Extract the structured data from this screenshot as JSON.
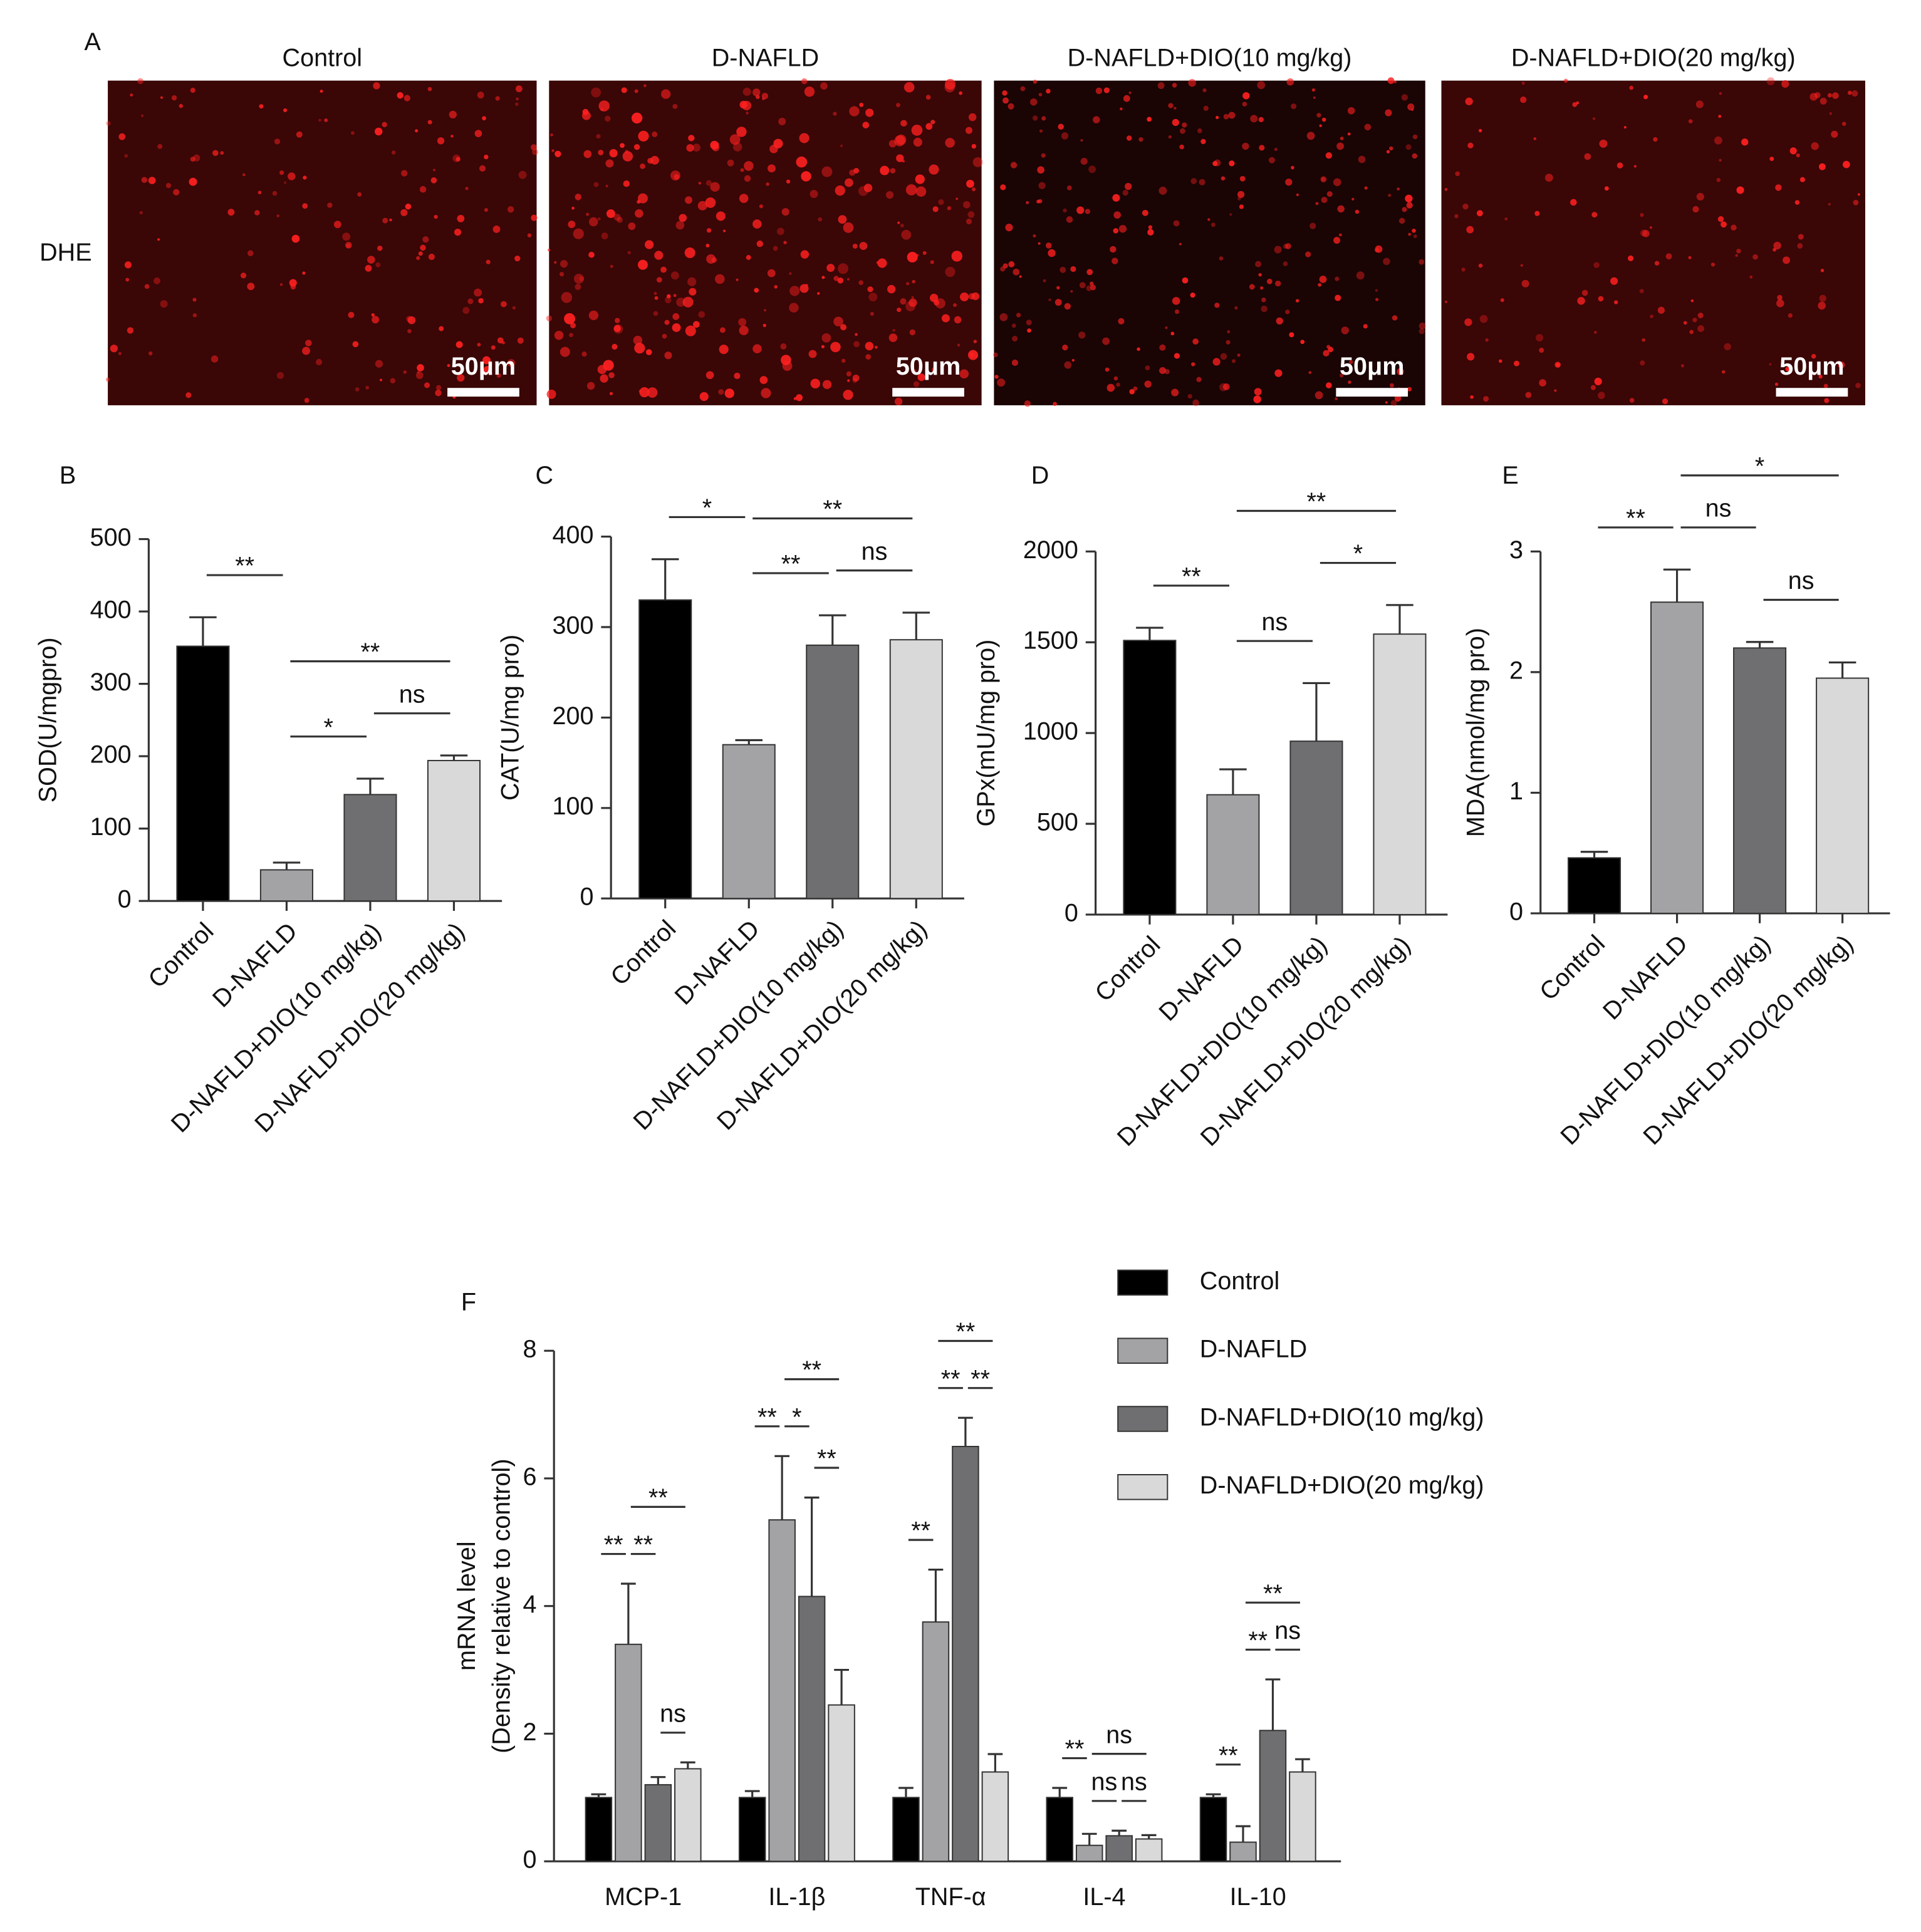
{
  "image_panel": {
    "panel": "A",
    "row_label": "DHE",
    "titles": [
      "Control",
      "D-NAFLD",
      "D-NAFLD+DIO(10 mg/kg)",
      "D-NAFLD+DIO(20 mg/kg)"
    ],
    "scale_bar": "50μm"
  },
  "chart_data": [
    {
      "type": "bar",
      "panel": "B",
      "ylabel": "SOD(U/mgpro)",
      "categories": [
        "Control",
        "D-NAFLD",
        "D-NAFLD+DIO(10 mg/kg)",
        "D-NAFLD+DIO(20 mg/kg)"
      ],
      "values": [
        352,
        43,
        147,
        194
      ],
      "errors": [
        40,
        10,
        22,
        7
      ],
      "colors": [
        "#000000",
        "#a3a3a6",
        "#6f6f71",
        "#d9d9d9"
      ],
      "ylim": [
        0,
        500
      ],
      "yticks": [
        0,
        100,
        200,
        300,
        400,
        500
      ],
      "annotations": [
        {
          "text": "**",
          "bars": [
            0,
            1
          ]
        },
        {
          "text": "*",
          "bars": [
            1,
            2
          ]
        },
        {
          "text": "ns",
          "bars": [
            2,
            3
          ]
        },
        {
          "text": "**",
          "bars": [
            1,
            3
          ]
        }
      ]
    },
    {
      "type": "bar",
      "panel": "C",
      "ylabel": "CAT(U/mg pro)",
      "categories": [
        "Control",
        "D-NAFLD",
        "D-NAFLD+DIO(10 mg/kg)",
        "D-NAFLD+DIO(20 mg/kg)"
      ],
      "values": [
        330,
        170,
        280,
        286
      ],
      "errors": [
        45,
        5,
        33,
        30
      ],
      "colors": [
        "#000000",
        "#a3a3a6",
        "#6f6f71",
        "#d9d9d9"
      ],
      "ylim": [
        0,
        400
      ],
      "yticks": [
        0,
        100,
        200,
        300,
        400
      ],
      "annotations": [
        {
          "text": "*",
          "bars": [
            0,
            1
          ]
        },
        {
          "text": "**",
          "bars": [
            1,
            2
          ]
        },
        {
          "text": "ns",
          "bars": [
            2,
            3
          ]
        },
        {
          "text": "**",
          "bars": [
            1,
            3
          ]
        }
      ]
    },
    {
      "type": "bar",
      "panel": "D",
      "ylabel": "GPx(mU/mg pro)",
      "categories": [
        "Control",
        "D-NAFLD",
        "D-NAFLD+DIO(10 mg/kg)",
        "D-NAFLD+DIO(20 mg/kg)"
      ],
      "values": [
        1510,
        660,
        955,
        1545
      ],
      "errors": [
        70,
        140,
        320,
        160
      ],
      "colors": [
        "#000000",
        "#a3a3a6",
        "#6f6f71",
        "#d9d9d9"
      ],
      "ylim": [
        0,
        2000
      ],
      "yticks": [
        0,
        500,
        1000,
        1500,
        2000
      ],
      "annotations": [
        {
          "text": "**",
          "bars": [
            0,
            1
          ]
        },
        {
          "text": "ns",
          "bars": [
            1,
            2
          ]
        },
        {
          "text": "*",
          "bars": [
            2,
            3
          ]
        },
        {
          "text": "**",
          "bars": [
            1,
            3
          ]
        }
      ]
    },
    {
      "type": "bar",
      "panel": "E",
      "ylabel": "MDA(nmol/mg pro)",
      "categories": [
        "Control",
        "D-NAFLD",
        "D-NAFLD+DIO(10 mg/kg)",
        "D-NAFLD+DIO(20 mg/kg)"
      ],
      "values": [
        0.46,
        2.58,
        2.2,
        1.95
      ],
      "errors": [
        0.05,
        0.27,
        0.05,
        0.13
      ],
      "colors": [
        "#000000",
        "#a3a3a6",
        "#6f6f71",
        "#d9d9d9"
      ],
      "ylim": [
        0,
        3
      ],
      "yticks": [
        0,
        1,
        2,
        3
      ],
      "annotations": [
        {
          "text": "**",
          "bars": [
            0,
            1
          ]
        },
        {
          "text": "ns",
          "bars": [
            1,
            2
          ]
        },
        {
          "text": "ns",
          "bars": [
            2,
            3
          ]
        },
        {
          "text": "*",
          "bars": [
            1,
            3
          ]
        }
      ]
    },
    {
      "type": "grouped_bar",
      "panel": "F",
      "ylabel": [
        "mRNA level",
        "(Density relative to control)"
      ],
      "categories": [
        "MCP-1",
        "IL-1β",
        "TNF-α",
        "IL-4",
        "IL-10"
      ],
      "series": [
        {
          "name": "Control",
          "color": "#000000",
          "values": [
            1,
            1,
            1,
            1,
            1
          ],
          "errors": [
            0.05,
            0.1,
            0.15,
            0.15,
            0.05
          ]
        },
        {
          "name": "D-NAFLD",
          "color": "#a3a3a6",
          "values": [
            3.4,
            5.35,
            3.75,
            0.25,
            0.3
          ],
          "errors": [
            0.95,
            1.0,
            0.82,
            0.18,
            0.25
          ]
        },
        {
          "name": "D-NAFLD+DIO(10 mg/kg)",
          "color": "#6f6f71",
          "values": [
            1.2,
            4.15,
            6.5,
            0.4,
            2.05
          ],
          "errors": [
            0.12,
            1.55,
            0.45,
            0.08,
            0.8
          ]
        },
        {
          "name": "D-NAFLD+DIO(20 mg/kg)",
          "color": "#d9d9d9",
          "values": [
            1.45,
            2.45,
            1.4,
            0.35,
            1.4
          ],
          "errors": [
            0.1,
            0.55,
            0.28,
            0.06,
            0.2
          ]
        }
      ],
      "ylim": [
        0,
        8
      ],
      "yticks": [
        0,
        2,
        4,
        6,
        8
      ],
      "annotations": [
        {
          "text": "**",
          "category": 0,
          "bars": [
            0,
            1
          ]
        },
        {
          "text": "**",
          "category": 0,
          "bars": [
            1,
            2
          ]
        },
        {
          "text": "ns",
          "category": 0,
          "bars": [
            2,
            3
          ]
        },
        {
          "text": "**",
          "category": 0,
          "bars": [
            1,
            3
          ]
        },
        {
          "text": "**",
          "category": 1,
          "bars": [
            0,
            1
          ]
        },
        {
          "text": "*",
          "category": 1,
          "bars": [
            1,
            2
          ]
        },
        {
          "text": "**",
          "category": 1,
          "bars": [
            2,
            3
          ]
        },
        {
          "text": "**",
          "category": 1,
          "bars": [
            1,
            3
          ]
        },
        {
          "text": "**",
          "category": 2,
          "bars": [
            0,
            1
          ]
        },
        {
          "text": "**",
          "category": 2,
          "bars": [
            1,
            2
          ]
        },
        {
          "text": "**",
          "category": 2,
          "bars": [
            2,
            3
          ]
        },
        {
          "text": "**",
          "category": 2,
          "bars": [
            1,
            3
          ]
        },
        {
          "text": "**",
          "category": 3,
          "bars": [
            0,
            1
          ]
        },
        {
          "text": "ns",
          "category": 3,
          "bars": [
            1,
            2
          ]
        },
        {
          "text": "ns",
          "category": 3,
          "bars": [
            2,
            3
          ]
        },
        {
          "text": "ns",
          "category": 3,
          "bars": [
            1,
            3
          ]
        },
        {
          "text": "**",
          "category": 4,
          "bars": [
            0,
            1
          ]
        },
        {
          "text": "**",
          "category": 4,
          "bars": [
            1,
            2
          ]
        },
        {
          "text": "ns",
          "category": 4,
          "bars": [
            2,
            3
          ]
        },
        {
          "text": "**",
          "category": 4,
          "bars": [
            1,
            3
          ]
        }
      ]
    }
  ]
}
